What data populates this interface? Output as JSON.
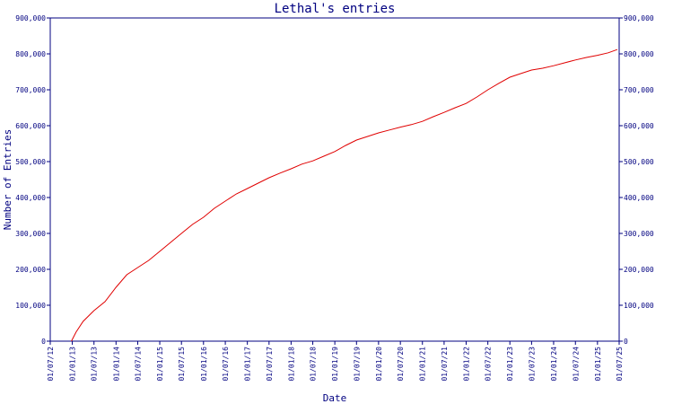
{
  "chart_data": {
    "type": "line",
    "title": "Lethal's entries",
    "xlabel": "Date",
    "ylabel": "Number of Entries",
    "ylim": [
      0,
      900000
    ],
    "y_ticks": [
      0,
      100000,
      200000,
      300000,
      400000,
      500000,
      600000,
      700000,
      800000,
      900000
    ],
    "y_tick_labels": [
      "0",
      "100,000",
      "200,000",
      "300,000",
      "400,000",
      "500,000",
      "600,000",
      "700,000",
      "800,000",
      "900,000"
    ],
    "x_ticks": [
      "2012-07-01",
      "2013-01-01",
      "2013-07-01",
      "2014-01-01",
      "2014-07-01",
      "2015-01-01",
      "2015-07-01",
      "2016-01-01",
      "2016-07-01",
      "2017-01-01",
      "2017-07-01",
      "2018-01-01",
      "2018-07-01",
      "2019-01-01",
      "2019-07-01",
      "2020-01-01",
      "2020-07-01",
      "2021-01-01",
      "2021-07-01",
      "2022-01-01",
      "2022-07-01",
      "2023-01-01",
      "2023-07-01",
      "2024-01-01",
      "2024-07-01",
      "2025-01-01",
      "2025-07-01"
    ],
    "x_tick_labels": [
      "01/07/12",
      "01/01/13",
      "01/07/13",
      "01/01/14",
      "01/07/14",
      "01/01/15",
      "01/07/15",
      "01/01/16",
      "01/07/16",
      "01/01/17",
      "01/07/17",
      "01/01/18",
      "01/07/18",
      "01/01/19",
      "01/07/19",
      "01/01/20",
      "01/07/20",
      "01/01/21",
      "01/07/21",
      "01/01/22",
      "01/07/22",
      "01/01/23",
      "01/07/23",
      "01/01/24",
      "01/07/24",
      "01/01/25",
      "01/07/25"
    ],
    "xlim": [
      "2012-07-01",
      "2025-07-01"
    ],
    "grid": false,
    "legend": "none",
    "series": [
      {
        "color": "#e00000",
        "x": [
          "2012-12-25",
          "2013-02-01",
          "2013-04-01",
          "2013-07-01",
          "2013-10-01",
          "2014-01-01",
          "2014-04-01",
          "2014-07-01",
          "2014-10-01",
          "2015-01-01",
          "2015-04-01",
          "2015-07-01",
          "2015-10-01",
          "2016-01-01",
          "2016-04-01",
          "2016-07-01",
          "2016-10-01",
          "2017-01-01",
          "2017-04-01",
          "2017-07-01",
          "2017-10-01",
          "2018-01-01",
          "2018-04-01",
          "2018-07-01",
          "2018-10-01",
          "2019-01-01",
          "2019-04-01",
          "2019-07-01",
          "2019-10-01",
          "2020-01-01",
          "2020-04-01",
          "2020-07-01",
          "2020-10-01",
          "2021-01-01",
          "2021-04-01",
          "2021-07-01",
          "2021-10-01",
          "2022-01-01",
          "2022-04-01",
          "2022-07-01",
          "2022-10-01",
          "2023-01-01",
          "2023-04-01",
          "2023-07-01",
          "2023-10-01",
          "2024-01-01",
          "2024-04-01",
          "2024-07-01",
          "2024-10-01",
          "2025-01-01",
          "2025-04-01",
          "2025-06-15"
        ],
        "y": [
          0,
          25000,
          55000,
          85000,
          110000,
          150000,
          185000,
          205000,
          225000,
          250000,
          275000,
          300000,
          325000,
          345000,
          370000,
          390000,
          410000,
          425000,
          440000,
          455000,
          468000,
          480000,
          493000,
          502000,
          515000,
          528000,
          545000,
          560000,
          570000,
          580000,
          588000,
          596000,
          603000,
          612000,
          625000,
          637000,
          650000,
          662000,
          680000,
          700000,
          718000,
          735000,
          745000,
          755000,
          760000,
          767000,
          775000,
          783000,
          790000,
          796000,
          803000,
          812000
        ]
      }
    ]
  }
}
